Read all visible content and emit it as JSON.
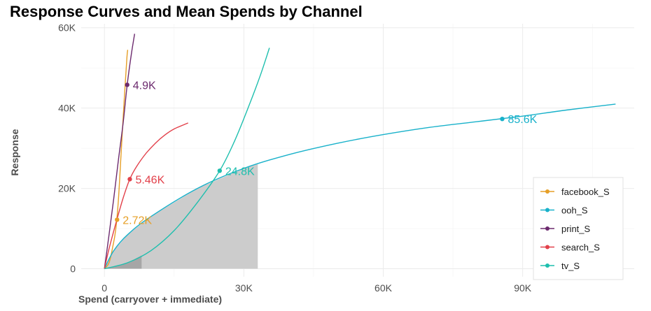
{
  "chart_data": {
    "type": "line",
    "title": "Response Curves and Mean Spends by Channel",
    "xlabel": "Spend (carryover + immediate)",
    "ylabel": "Response",
    "xlim": [
      -5000,
      114000
    ],
    "ylim": [
      -2000,
      61000
    ],
    "x_ticks": [
      0,
      30000,
      60000,
      90000
    ],
    "x_tick_labels": [
      "0",
      "30K",
      "60K",
      "90K"
    ],
    "y_ticks": [
      0,
      20000,
      40000,
      60000
    ],
    "y_tick_labels": [
      "0",
      "20K",
      "40K",
      "60K"
    ],
    "grid": true,
    "legend_position": "right",
    "series": [
      {
        "name": "facebook_S",
        "color": "#E69F27",
        "x": [
          0,
          1000,
          1800,
          2400,
          3000,
          3600,
          4200,
          4800,
          5000
        ],
        "y": [
          0,
          1500,
          5500,
          9500,
          17000,
          29000,
          41000,
          52000,
          54500
        ],
        "mean_point": {
          "x": 2720,
          "y": 12200,
          "label": "2.72K"
        }
      },
      {
        "name": "ooh_S",
        "color": "#18B1CA",
        "x": [
          0,
          2000,
          5000,
          10000,
          20000,
          30000,
          40000,
          50000,
          60000,
          70000,
          80000,
          90000,
          100000,
          110000
        ],
        "y": [
          0,
          4500,
          8500,
          13000,
          20000,
          25000,
          28500,
          31200,
          33400,
          35200,
          36600,
          38000,
          39600,
          41000
        ],
        "mean_point": {
          "x": 85600,
          "y": 37300,
          "label": "85.6K"
        }
      },
      {
        "name": "print_S",
        "color": "#6C2A6E",
        "x": [
          0,
          1000,
          2000,
          3000,
          4000,
          4900,
          5800,
          6500
        ],
        "y": [
          0,
          8500,
          17500,
          27000,
          36000,
          45800,
          53500,
          58500
        ],
        "mean_point": {
          "x": 4900,
          "y": 45800,
          "label": "4.9K"
        }
      },
      {
        "name": "search_S",
        "color": "#E2404A",
        "x": [
          0,
          1000,
          2500,
          4000,
          5460,
          7000,
          9000,
          11000,
          13000,
          15000,
          18000
        ],
        "y": [
          0,
          5000,
          11500,
          17500,
          22300,
          25600,
          28800,
          31300,
          33300,
          34800,
          36300
        ],
        "mean_point": {
          "x": 5460,
          "y": 22300,
          "label": "5.46K"
        }
      },
      {
        "name": "tv_S",
        "color": "#1EBFAE",
        "x": [
          0,
          5000,
          10000,
          15000,
          20000,
          24800,
          28000,
          31000,
          33500,
          35500
        ],
        "y": [
          0,
          1500,
          4500,
          9500,
          16500,
          24400,
          31800,
          40300,
          48000,
          55000
        ],
        "mean_point": {
          "x": 24800,
          "y": 24400,
          "label": "24.8K"
        }
      }
    ],
    "shaded_areas": [
      {
        "series": "ooh_S",
        "from": 0,
        "to": 33000,
        "color": "#cccccc"
      },
      {
        "series": "tv_S",
        "from": 0,
        "to": 8000,
        "color": "#a6a6a6"
      }
    ]
  }
}
